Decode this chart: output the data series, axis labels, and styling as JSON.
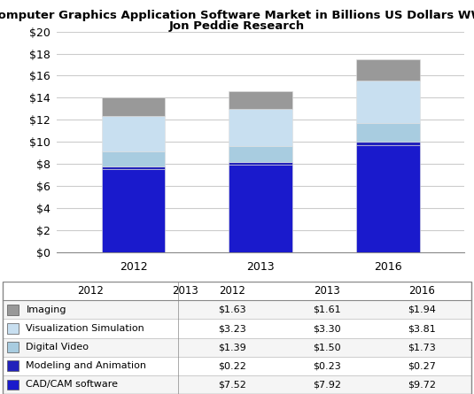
{
  "title_line1": "Computer Graphics Application Software Market in Billions US Dollars WW",
  "title_line2": "Jon Peddie Research",
  "years": [
    "2012",
    "2013",
    "2016"
  ],
  "categories": [
    "CAD/CAM software",
    "Modeling and Animation",
    "Digital Video",
    "Visualization Simulation",
    "Imaging"
  ],
  "values": {
    "CAD/CAM software": [
      7.52,
      7.92,
      9.72
    ],
    "Modeling and Animation": [
      0.22,
      0.23,
      0.27
    ],
    "Digital Video": [
      1.39,
      1.5,
      1.73
    ],
    "Visualization Simulation": [
      3.23,
      3.3,
      3.81
    ],
    "Imaging": [
      1.63,
      1.61,
      1.94
    ]
  },
  "colors": {
    "CAD/CAM software": "#1a1acc",
    "Modeling and Animation": "#2222bb",
    "Digital Video": "#a8cce0",
    "Visualization Simulation": "#c8dff0",
    "Imaging": "#999999"
  },
  "table_rows": [
    "Imaging",
    "Visualization Simulation",
    "Digital Video",
    "Modeling and Animation",
    "CAD/CAM software"
  ],
  "table_data": {
    "Imaging": [
      "$1.63",
      "$1.61",
      "$1.94"
    ],
    "Visualization Simulation": [
      "$3.23",
      "$3.30",
      "$3.81"
    ],
    "Digital Video": [
      "$1.39",
      "$1.50",
      "$1.73"
    ],
    "Modeling and Animation": [
      "$0.22",
      "$0.23",
      "$0.27"
    ],
    "CAD/CAM software": [
      "$7.52",
      "$7.92",
      "$9.72"
    ]
  },
  "swatch_colors": {
    "Imaging": "#999999",
    "Visualization Simulation": "#c8dff0",
    "Digital Video": "#a8cce0",
    "Modeling and Animation": "#2222bb",
    "CAD/CAM software": "#1a1acc"
  },
  "ylim": [
    0,
    20
  ],
  "yticks": [
    0,
    2,
    4,
    6,
    8,
    10,
    12,
    14,
    16,
    18,
    20
  ],
  "bar_width": 0.5,
  "background_color": "#ffffff",
  "grid_color": "#cccccc",
  "title_fontsize": 9.5,
  "axis_fontsize": 9,
  "table_fontsize": 8.5
}
